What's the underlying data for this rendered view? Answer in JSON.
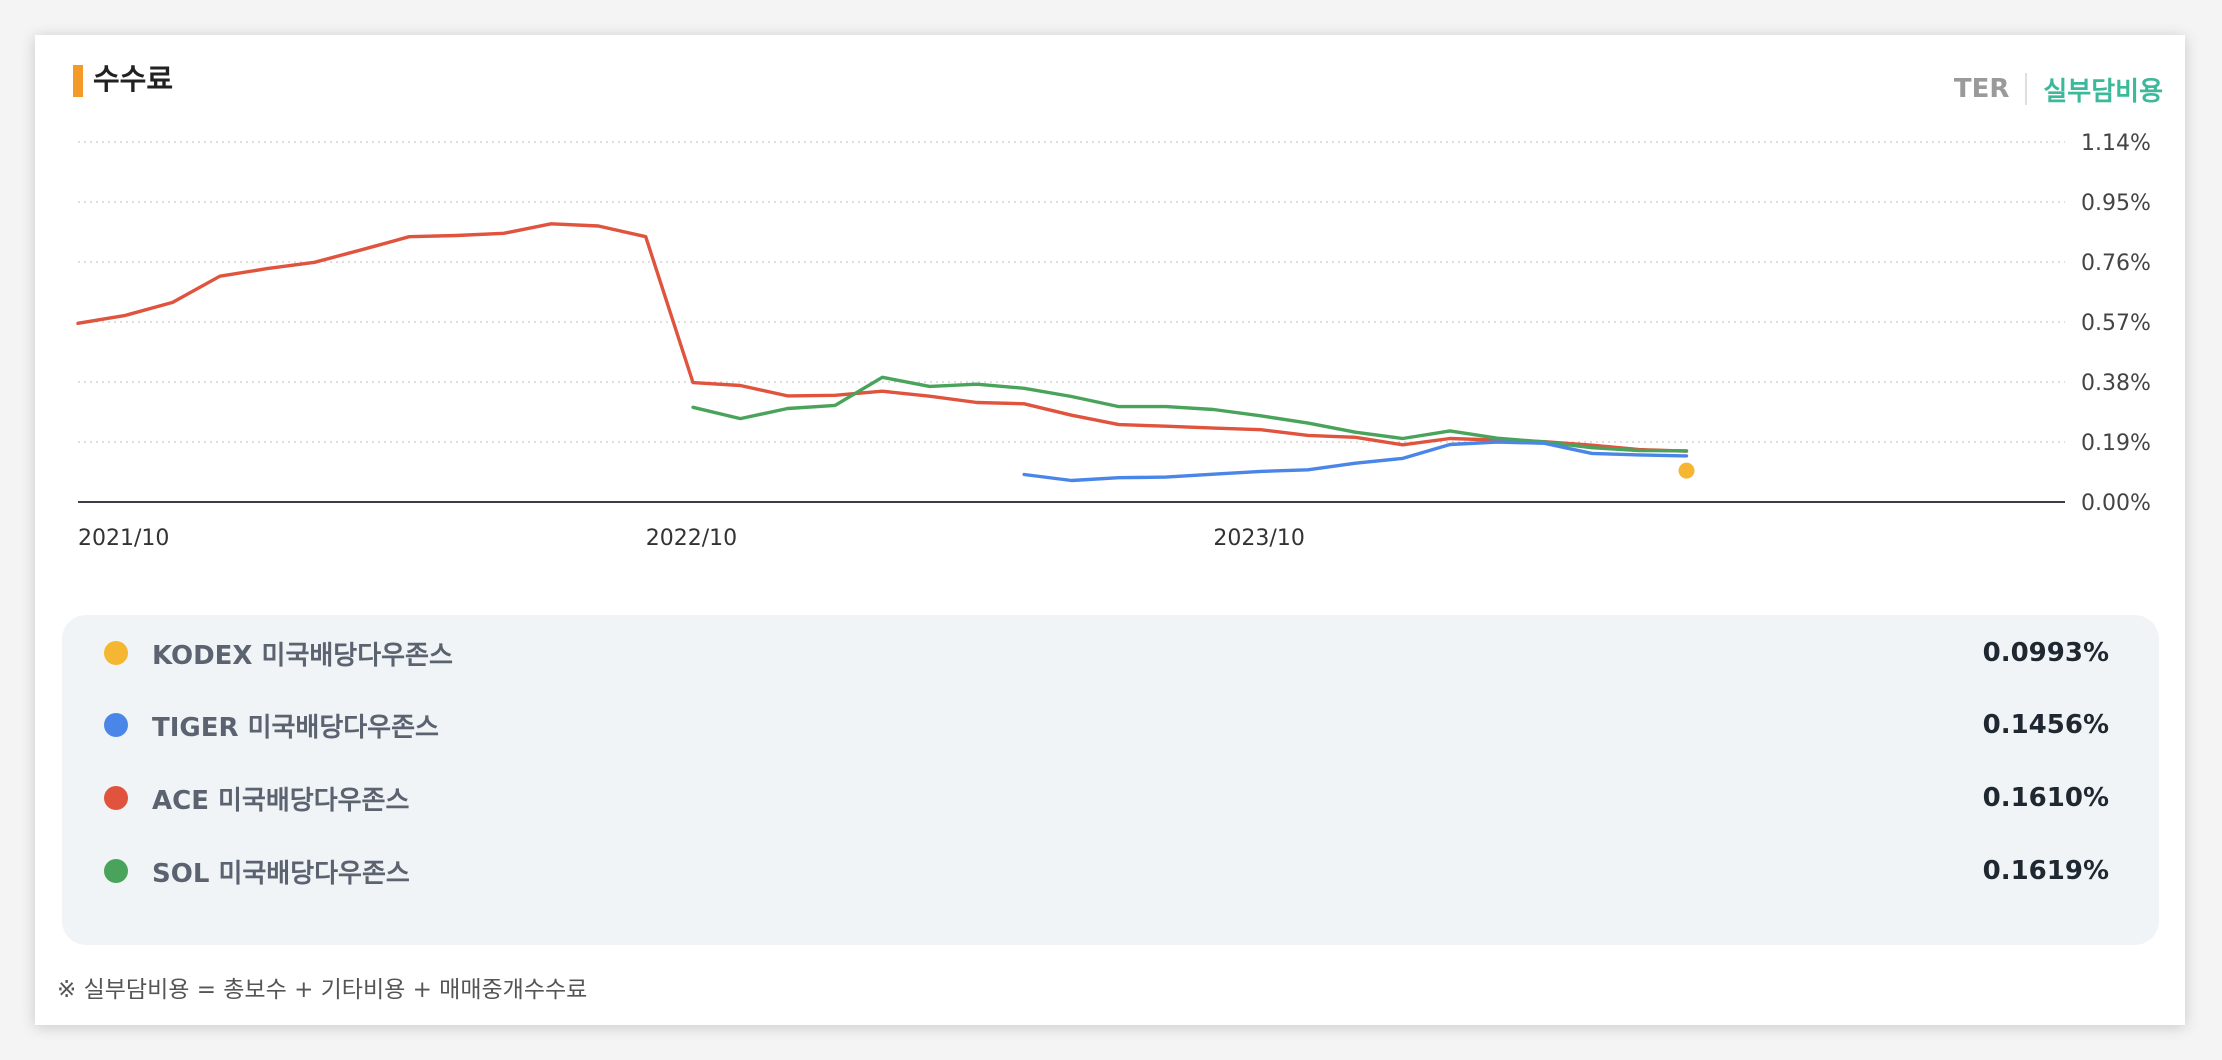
{
  "header": {
    "title": "수수료",
    "toggle_ter": "TER",
    "toggle_real": "실부담비용"
  },
  "colors": {
    "accent": "#f39a2b",
    "toggle_active": "#3cb89a",
    "kodex": "#f5b731",
    "tiger": "#4a86e8",
    "ace": "#e0533d",
    "sol": "#4aa35b"
  },
  "legend": [
    {
      "name": "KODEX 미국배당다우존스",
      "value": "0.0993%",
      "color": "#f5b731"
    },
    {
      "name": "TIGER 미국배당다우존스",
      "value": "0.1456%",
      "color": "#4a86e8"
    },
    {
      "name": "ACE 미국배당다우존스",
      "value": "0.1610%",
      "color": "#e0533d"
    },
    {
      "name": "SOL 미국배당다우존스",
      "value": "0.1619%",
      "color": "#4aa35b"
    }
  ],
  "footnote": "※ 실부담비용 = 총보수 + 기타비용 + 매매중개수수료",
  "chart_data": {
    "type": "line",
    "x_ticks": [
      "2021/10",
      "2022/10",
      "2023/10"
    ],
    "y_ticks": [
      "0.00%",
      "0.19%",
      "0.38%",
      "0.57%",
      "0.76%",
      "0.95%",
      "1.14%"
    ],
    "ylim": [
      0,
      1.14
    ],
    "xlim": [
      "2021-10",
      "2025-04"
    ],
    "grid": true,
    "series": [
      {
        "name": "ACE 미국배당다우존스",
        "color": "#e0533d",
        "points": [
          [
            "2021-10",
            0.566
          ],
          [
            "2021-11",
            0.591
          ],
          [
            "2021-12",
            0.632
          ],
          [
            "2022-01",
            0.715
          ],
          [
            "2022-02",
            0.739
          ],
          [
            "2022-03",
            0.759
          ],
          [
            "2022-04",
            0.799
          ],
          [
            "2022-05",
            0.84
          ],
          [
            "2022-06",
            0.844
          ],
          [
            "2022-07",
            0.851
          ],
          [
            "2022-08",
            0.881
          ],
          [
            "2022-09",
            0.874
          ],
          [
            "2022-10",
            0.84
          ],
          [
            "2022-11",
            0.378
          ],
          [
            "2022-12",
            0.369
          ],
          [
            "2023-01",
            0.336
          ],
          [
            "2023-02",
            0.338
          ],
          [
            "2023-03",
            0.351
          ],
          [
            "2023-04",
            0.335
          ],
          [
            "2023-05",
            0.315
          ],
          [
            "2023-06",
            0.311
          ],
          [
            "2023-07",
            0.275
          ],
          [
            "2023-08",
            0.245
          ],
          [
            "2023-09",
            0.24
          ],
          [
            "2023-10",
            0.234
          ],
          [
            "2023-11",
            0.229
          ],
          [
            "2023-12",
            0.211
          ],
          [
            "2024-01",
            0.205
          ],
          [
            "2024-02",
            0.181
          ],
          [
            "2024-03",
            0.201
          ],
          [
            "2024-04",
            0.196
          ],
          [
            "2024-05",
            0.191
          ],
          [
            "2024-06",
            0.18
          ],
          [
            "2024-07",
            0.166
          ],
          [
            "2024-08",
            0.161
          ]
        ]
      },
      {
        "name": "SOL 미국배당다우존스",
        "color": "#4aa35b",
        "points": [
          [
            "2022-11",
            0.3
          ],
          [
            "2022-12",
            0.264
          ],
          [
            "2023-01",
            0.296
          ],
          [
            "2023-02",
            0.306
          ],
          [
            "2023-03",
            0.395
          ],
          [
            "2023-04",
            0.366
          ],
          [
            "2023-05",
            0.373
          ],
          [
            "2023-06",
            0.36
          ],
          [
            "2023-07",
            0.334
          ],
          [
            "2023-08",
            0.302
          ],
          [
            "2023-09",
            0.302
          ],
          [
            "2023-10",
            0.293
          ],
          [
            "2023-11",
            0.273
          ],
          [
            "2023-12",
            0.25
          ],
          [
            "2024-01",
            0.221
          ],
          [
            "2024-02",
            0.201
          ],
          [
            "2024-03",
            0.225
          ],
          [
            "2024-04",
            0.202
          ],
          [
            "2024-05",
            0.19
          ],
          [
            "2024-06",
            0.172
          ],
          [
            "2024-07",
            0.163
          ],
          [
            "2024-08",
            0.162
          ]
        ]
      },
      {
        "name": "TIGER 미국배당다우존스",
        "color": "#4a86e8",
        "points": [
          [
            "2023-06",
            0.087
          ],
          [
            "2023-07",
            0.068
          ],
          [
            "2023-08",
            0.077
          ],
          [
            "2023-09",
            0.079
          ],
          [
            "2023-10",
            0.088
          ],
          [
            "2023-11",
            0.097
          ],
          [
            "2023-12",
            0.102
          ],
          [
            "2024-01",
            0.123
          ],
          [
            "2024-02",
            0.138
          ],
          [
            "2024-03",
            0.182
          ],
          [
            "2024-04",
            0.19
          ],
          [
            "2024-05",
            0.186
          ],
          [
            "2024-06",
            0.154
          ],
          [
            "2024-07",
            0.149
          ],
          [
            "2024-08",
            0.146
          ]
        ]
      },
      {
        "name": "KODEX 미국배당다우존스",
        "color": "#f5b731",
        "points": [
          [
            "2024-08",
            0.0993
          ]
        ]
      }
    ]
  }
}
